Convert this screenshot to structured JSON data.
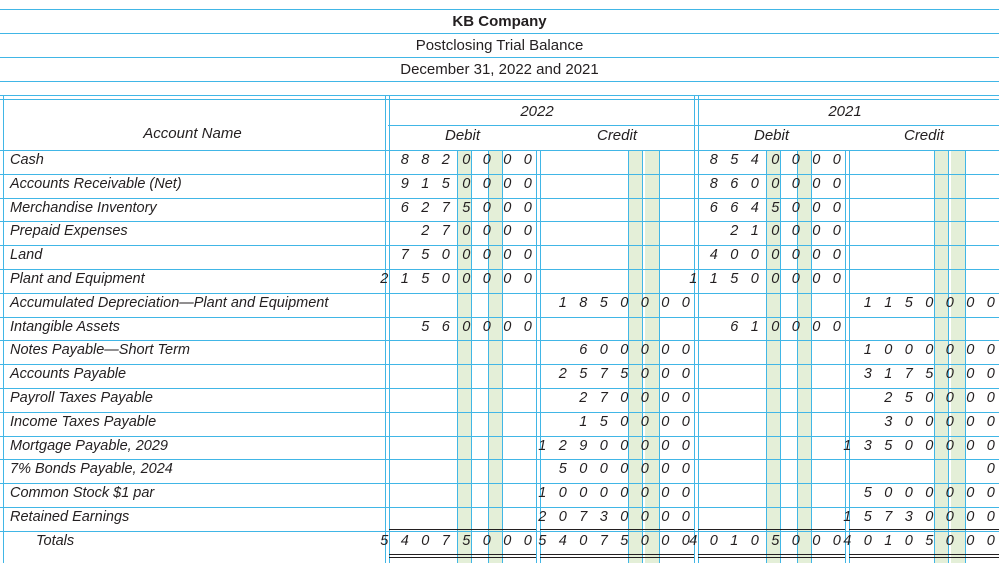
{
  "header": {
    "company": "KB Company",
    "statement": "Postclosing Trial Balance",
    "date": "December 31, 2022 and 2021"
  },
  "columns": {
    "account_name": "Account Name",
    "year_a": "2022",
    "year_b": "2021",
    "debit": "Debit",
    "credit": "Credit"
  },
  "rows": [
    {
      "account": "Cash",
      "d22": "8 8 2 0 0 0 0",
      "c22": "",
      "d21": "8 5 4 0 0 0 0",
      "c21": ""
    },
    {
      "account": "Accounts Receivable (Net)",
      "d22": "9 1 5 0 0 0 0",
      "c22": "",
      "d21": "8 6 0 0 0 0 0",
      "c21": ""
    },
    {
      "account": "Merchandise Inventory",
      "d22": "6 2 7 5 0 0 0",
      "c22": "",
      "d21": "6 6 4 5 0 0 0",
      "c21": ""
    },
    {
      "account": "Prepaid Expenses",
      "d22": "2 7 0 0 0 0",
      "c22": "",
      "d21": "2 1 0 0 0 0",
      "c21": ""
    },
    {
      "account": "Land",
      "d22": "7 5 0 0 0 0 0",
      "c22": "",
      "d21": "4 0 0 0 0 0 0",
      "c21": ""
    },
    {
      "account": "Plant and Equipment",
      "d22": "2 1 5 0 0 0 0 0",
      "c22": "",
      "d21": "1 1 5 0 0 0 0 0",
      "c21": ""
    },
    {
      "account": "Accumulated Depreciation—Plant and Equipment",
      "d22": "",
      "c22": "1 8 5 0 0 0 0",
      "d21": "",
      "c21": "1 1 5 0 0 0 0"
    },
    {
      "account": "Intangible Assets",
      "d22": "5 6 0 0 0 0",
      "c22": "",
      "d21": "6 1 0 0 0 0",
      "c21": ""
    },
    {
      "account": "Notes Payable—Short Term",
      "d22": "",
      "c22": "6 0 0 0 0 0",
      "d21": "",
      "c21": "1 0 0 0 0 0 0"
    },
    {
      "account": "Accounts Payable",
      "d22": "",
      "c22": "2 5 7 5 0 0 0",
      "d21": "",
      "c21": "3 1 7 5 0 0 0"
    },
    {
      "account": "Payroll Taxes Payable",
      "d22": "",
      "c22": "2 7 0 0 0 0",
      "d21": "",
      "c21": "2 5 0 0 0 0"
    },
    {
      "account": "Income Taxes Payable",
      "d22": "",
      "c22": "1 5 0 0 0 0",
      "d21": "",
      "c21": "3 0 0 0 0 0"
    },
    {
      "account": "Mortgage Payable, 2029",
      "d22": "",
      "c22": "1 2 9 0 0 0 0 0",
      "d21": "",
      "c21": "1 3 5 0 0 0 0 0"
    },
    {
      "account": "7% Bonds Payable, 2024",
      "d22": "",
      "c22": "5 0 0 0 0 0 0",
      "d21": "",
      "c21": "0"
    },
    {
      "account": "Common Stock $1 par",
      "d22": "",
      "c22": "1 0 0 0 0 0 0 0",
      "d21": "",
      "c21": "5 0 0 0 0 0 0"
    },
    {
      "account": "Retained Earnings",
      "d22": "",
      "c22": "2 0 7 3 0 0 0 0",
      "d21": "",
      "c21": "1 5 7 3 0 0 0 0"
    },
    {
      "account": "Totals",
      "d22": "5 4 0 7 5 0 0 0",
      "c22": "5 4 0 7 5 0 0 0",
      "d21": "4 0 1 0 5 0 0 0",
      "c21": "4 0 1 0 5 0 0 0"
    }
  ]
}
